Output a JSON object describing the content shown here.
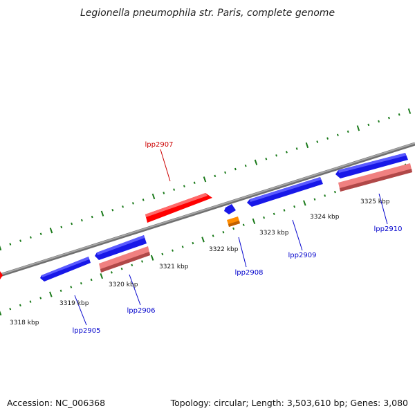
{
  "title": "Legionella pneumophila str. Paris, complete genome",
  "footer": {
    "accession": "Accession: NC_006368",
    "summary": "Topology: circular; Length: 3,503,610 bp; Genes: 3,080"
  },
  "colors": {
    "forward_gene": "#ff0000",
    "reverse_gene": "#0000ff",
    "rna_gene": "#ff8800",
    "cds_pink": "#f08080",
    "tick_green": "#1a7a1a",
    "backbone": "#8a8a8a",
    "label_red": "#cc0000",
    "label_blue": "#0000cc"
  },
  "kbp_labels": [
    "3318 kbp",
    "3319 kbp",
    "3320 kbp",
    "3321 kbp",
    "3322 kbp",
    "3323 kbp",
    "3324 kbp",
    "3325 kbp"
  ],
  "genes": [
    {
      "id": "gene-lpp2905",
      "label": "lpp2905",
      "color": "label_blue"
    },
    {
      "id": "gene-lpp2906",
      "label": "lpp2906",
      "color": "label_blue"
    },
    {
      "id": "gene-lpp2907",
      "label": "lpp2907",
      "color": "label_red"
    },
    {
      "id": "gene-lpp2908",
      "label": "lpp2908",
      "color": "label_blue"
    },
    {
      "id": "gene-lpp2909",
      "label": "lpp2909",
      "color": "label_blue"
    },
    {
      "id": "gene-lpp2910",
      "label": "lpp2910",
      "color": "label_blue"
    }
  ]
}
